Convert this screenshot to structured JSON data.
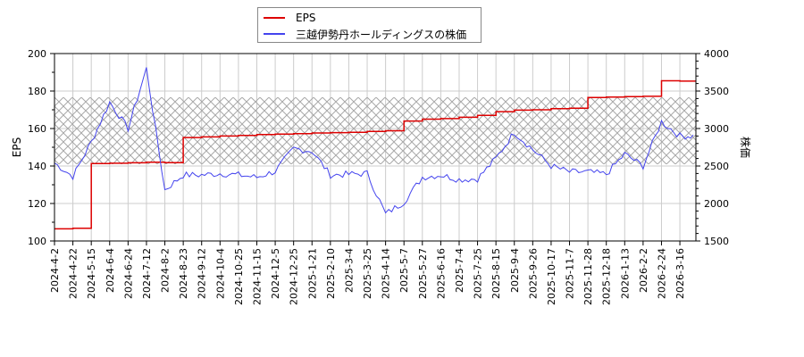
{
  "legend": {
    "items": [
      {
        "label": "EPS",
        "color": "#dd0000"
      },
      {
        "label": "三越伊勢丹ホールディングスの株価",
        "color": "#4444ee"
      }
    ]
  },
  "axes": {
    "left_title": "EPS",
    "right_title": "株価",
    "left_ticks": [
      "100",
      "120",
      "140",
      "160",
      "180",
      "200"
    ],
    "right_ticks": [
      "1500",
      "2000",
      "2500",
      "3000",
      "3500",
      "4000"
    ],
    "x_ticks": [
      "2024-4-2",
      "2024-4-22",
      "2024-5-15",
      "2024-6-4",
      "2024-6-24",
      "2024-7-12",
      "2024-8-2",
      "2024-8-23",
      "2024-9-12",
      "2024-10-4",
      "2024-10-25",
      "2024-11-15",
      "2024-12-5",
      "2024-12-25",
      "2025-1-21",
      "2025-2-10",
      "2025-3-4",
      "2025-3-25",
      "2025-4-14",
      "2025-5-7",
      "2025-5-27",
      "2025-6-16",
      "2025-7-4",
      "2025-7-25",
      "2025-8-15",
      "2025-9-4",
      "2025-9-26",
      "2025-10-17",
      "2025-11-7",
      "2025-11-28",
      "2025-12-18",
      "2026-1-13",
      "2026-2-2",
      "2026-2-24",
      "2026-3-16"
    ]
  },
  "chart_data": {
    "type": "line",
    "title": "",
    "xlabel": "",
    "ylabel": "EPS",
    "y2label": "株価",
    "ylim": [
      100,
      200
    ],
    "y2lim": [
      1500,
      4000
    ],
    "grid": true,
    "legend_position": "top-center",
    "shaded_band": {
      "y2_from": 2520,
      "y2_to": 3420,
      "pattern": "cross-hatch"
    },
    "categories": [
      "2024-4-2",
      "2024-4-22",
      "2024-5-15",
      "2024-6-4",
      "2024-6-24",
      "2024-7-12",
      "2024-8-2",
      "2024-8-23",
      "2024-9-12",
      "2024-10-4",
      "2024-10-25",
      "2024-11-15",
      "2024-12-5",
      "2024-12-25",
      "2025-1-21",
      "2025-2-10",
      "2025-3-4",
      "2025-3-25",
      "2025-4-14",
      "2025-5-7",
      "2025-5-27",
      "2025-6-16",
      "2025-7-4",
      "2025-7-25",
      "2025-8-15",
      "2025-9-4",
      "2025-9-26",
      "2025-10-17",
      "2025-11-7",
      "2025-11-28",
      "2025-12-18",
      "2026-1-13",
      "2026-2-2",
      "2026-2-24",
      "2026-3-16"
    ],
    "series": [
      {
        "name": "EPS",
        "axis": "left",
        "color": "#dd0000",
        "values": [
          106.5,
          106.8,
          141.3,
          141.5,
          141.7,
          142.0,
          141.8,
          155.2,
          155.5,
          156.0,
          156.3,
          156.8,
          157.0,
          157.3,
          157.6,
          157.8,
          158.0,
          158.5,
          158.8,
          164.0,
          165.0,
          165.3,
          166.0,
          167.0,
          169.0,
          169.8,
          170.0,
          170.6,
          170.8,
          176.5,
          176.8,
          177.0,
          177.2,
          185.5,
          185.3
        ]
      },
      {
        "name": "三越伊勢丹ホールディングスの株価",
        "axis": "right",
        "color": "#4444ee",
        "values": [
          2540,
          2360,
          2820,
          3350,
          3000,
          3800,
          2180,
          2380,
          2380,
          2400,
          2380,
          2350,
          2430,
          2730,
          2700,
          2380,
          2390,
          2400,
          1860,
          2020,
          2350,
          2380,
          2320,
          2330,
          2600,
          2950,
          2720,
          2500,
          2420,
          2420,
          2390,
          2660,
          2500,
          3090,
          2900
        ]
      }
    ]
  }
}
